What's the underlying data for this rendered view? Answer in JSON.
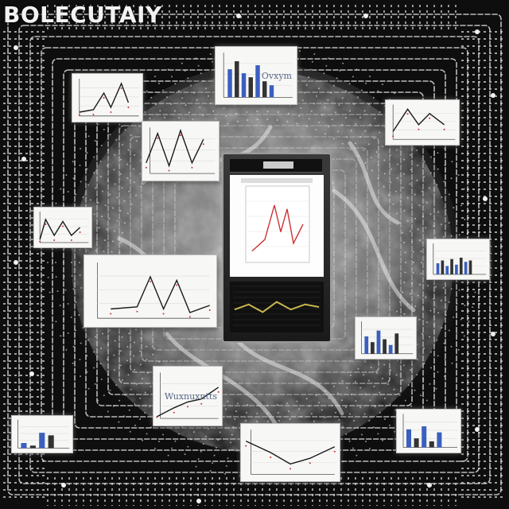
{
  "title": "BOLECUTAIY",
  "cards": [
    {
      "name": "card-top-left-line",
      "kind": "line",
      "points": [
        0.1,
        0.8,
        0.3,
        0.75,
        0.45,
        0.4,
        0.55,
        0.7,
        0.7,
        0.2,
        0.8,
        0.6
      ],
      "label": ""
    },
    {
      "name": "card-top-center-bars",
      "kind": "bars",
      "bars": [
        0.7,
        0.9,
        0.6,
        0.5,
        0.8,
        0.4,
        0.3
      ],
      "label": "Ovxym"
    },
    {
      "name": "card-top-right-line",
      "kind": "line",
      "points": [
        0.1,
        0.7,
        0.3,
        0.2,
        0.45,
        0.55,
        0.6,
        0.3,
        0.8,
        0.55
      ],
      "label": ""
    },
    {
      "name": "card-left-upper-peaks",
      "kind": "line",
      "points": [
        0.05,
        0.7,
        0.2,
        0.2,
        0.35,
        0.75,
        0.5,
        0.15,
        0.65,
        0.7,
        0.8,
        0.3
      ],
      "label": ""
    },
    {
      "name": "card-left-small",
      "kind": "line",
      "points": [
        0.1,
        0.8,
        0.2,
        0.3,
        0.35,
        0.7,
        0.5,
        0.35,
        0.65,
        0.7,
        0.8,
        0.5
      ],
      "label": ""
    },
    {
      "name": "card-left-large",
      "kind": "line",
      "points": [
        0.2,
        0.75,
        0.4,
        0.72,
        0.5,
        0.3,
        0.6,
        0.75,
        0.7,
        0.35,
        0.8,
        0.8,
        0.95,
        0.7
      ],
      "label": ""
    },
    {
      "name": "card-right-bars",
      "kind": "bars",
      "bars": [
        0.4,
        0.5,
        0.3,
        0.55,
        0.35,
        0.6,
        0.45,
        0.5
      ],
      "label": ""
    },
    {
      "name": "card-right-lower-bars",
      "kind": "bars",
      "bars": [
        0.6,
        0.4,
        0.8,
        0.5,
        0.3,
        0.7
      ],
      "label": ""
    },
    {
      "name": "card-bottom-left-tiny",
      "kind": "bars",
      "bars": [
        0.2,
        0.1,
        0.6,
        0.5
      ],
      "label": ""
    },
    {
      "name": "card-bottom-mid-left",
      "kind": "line",
      "points": [
        0.05,
        0.85,
        0.3,
        0.7,
        0.5,
        0.6,
        0.7,
        0.55,
        0.95,
        0.35
      ],
      "label": "Wuxnuxntts"
    },
    {
      "name": "card-bottom-center",
      "kind": "line",
      "points": [
        0.05,
        0.3,
        0.3,
        0.5,
        0.5,
        0.7,
        0.7,
        0.6,
        0.95,
        0.4
      ],
      "label": ""
    },
    {
      "name": "card-bottom-right",
      "kind": "bars",
      "bars": [
        0.6,
        0.3,
        0.7,
        0.2,
        0.5
      ],
      "label": ""
    }
  ],
  "phone": {
    "screen_points": [
      0.1,
      0.85,
      0.3,
      0.7,
      0.45,
      0.25,
      0.55,
      0.6,
      0.65,
      0.3,
      0.75,
      0.75,
      0.9,
      0.5
    ],
    "lower_points": [
      0.05,
      0.55,
      0.2,
      0.45,
      0.35,
      0.6,
      0.5,
      0.4,
      0.65,
      0.55,
      0.8,
      0.45,
      0.95,
      0.5
    ]
  },
  "colors": {
    "line": "#1a1a1a",
    "accent_blue": "#3a5fbf",
    "accent_red": "#cc3333",
    "lower_line": "#c8b850"
  }
}
